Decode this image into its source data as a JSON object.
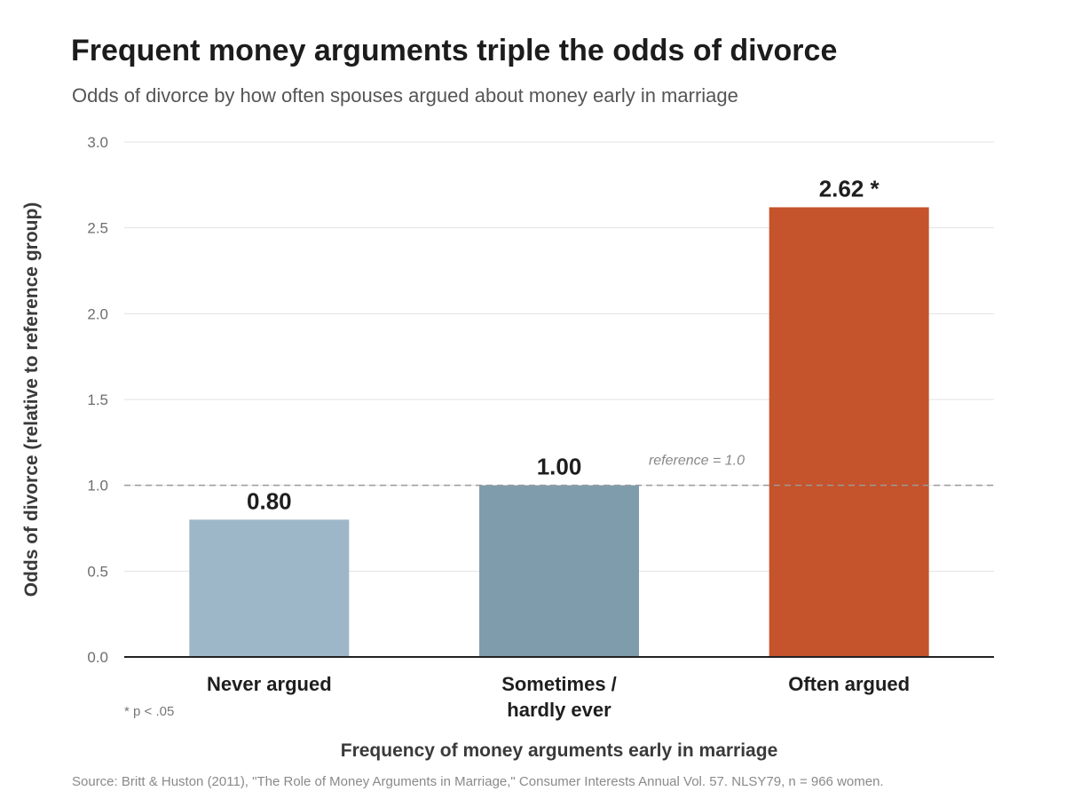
{
  "chart_data": {
    "type": "bar",
    "title": "Frequent money arguments triple the odds of divorce",
    "subtitle": "Odds of divorce by how often spouses argued about money early in marriage",
    "categories": [
      [
        "Never argued"
      ],
      [
        "Sometimes /",
        "hardly ever"
      ],
      [
        "Often argued"
      ]
    ],
    "values": [
      0.8,
      1.0,
      2.62
    ],
    "value_labels": [
      "0.80",
      "1.00",
      "2.62 *"
    ],
    "colors": [
      "#9eb7c8",
      "#7f9cad",
      "#c5532b"
    ],
    "ylim": [
      0,
      3.0
    ],
    "yticks": [
      "0.0",
      "0.5",
      "1.0",
      "1.5",
      "2.0",
      "2.5",
      "3.0"
    ],
    "ylabel": "Odds of divorce (relative to reference group)",
    "xlabel": "Frequency of money arguments early in marriage",
    "grid": true,
    "reference_line": {
      "value": 1.0,
      "label": "reference = 1.0"
    },
    "note": "* p < .05",
    "source": "Source: Britt & Huston (2011), \"The Role of Money Arguments in Marriage,\" Consumer Interests Annual Vol. 57. NLSY79, n = 966 women."
  }
}
